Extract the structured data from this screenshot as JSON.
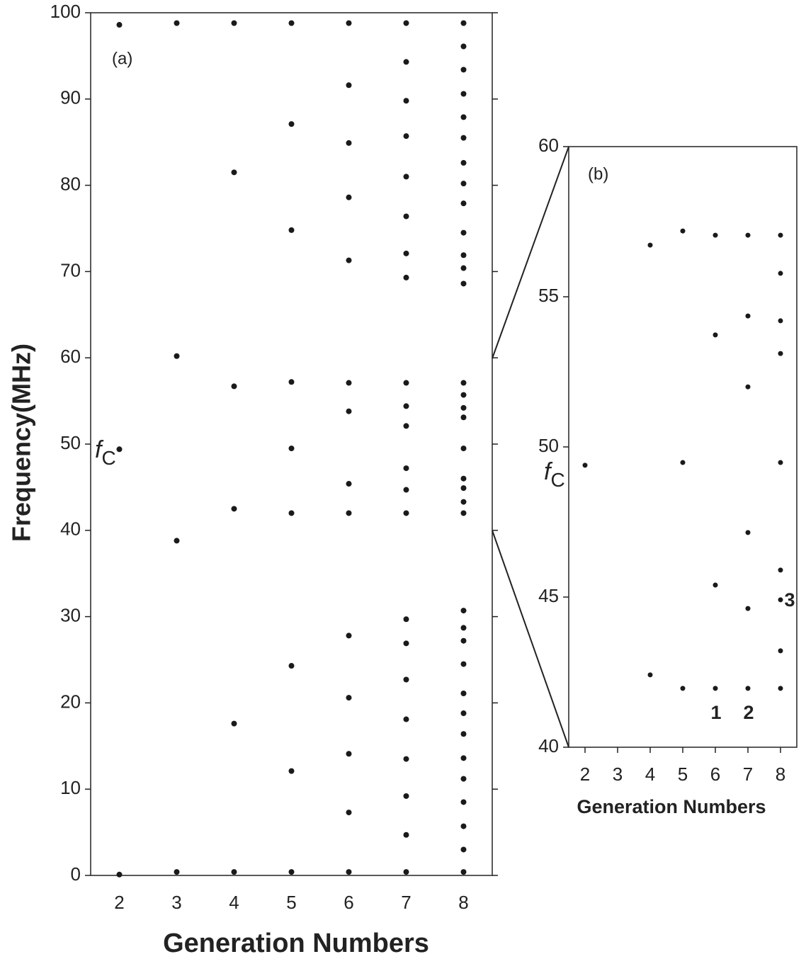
{
  "chart_data": [
    {
      "type": "scatter",
      "panel_label": "(a)",
      "x_label": "Generation Numbers",
      "y_label": "Frequency(MHz)",
      "annotation": {
        "text": "f",
        "subscript": "C"
      },
      "color": "#1a1a1a",
      "x": [
        2,
        3,
        4,
        5,
        6,
        7,
        8
      ],
      "values": [
        [
          98.6,
          49.4,
          0.1
        ],
        [
          98.8,
          60.2,
          38.8,
          0.4
        ],
        [
          98.8,
          81.5,
          56.7,
          42.5,
          17.6,
          0.4
        ],
        [
          98.8,
          87.1,
          74.8,
          57.2,
          49.5,
          42.0,
          24.3,
          12.1,
          0.4
        ],
        [
          98.8,
          91.6,
          84.9,
          78.6,
          71.3,
          57.1,
          53.8,
          45.4,
          42.0,
          27.8,
          20.6,
          14.1,
          7.3,
          0.4
        ],
        [
          98.8,
          94.3,
          89.8,
          85.7,
          81.0,
          76.4,
          72.1,
          69.3,
          57.1,
          54.4,
          52.1,
          47.2,
          44.7,
          42.0,
          29.7,
          26.9,
          22.7,
          18.1,
          13.5,
          9.2,
          4.7,
          0.4
        ],
        [
          98.8,
          96.1,
          93.4,
          90.6,
          87.9,
          85.5,
          82.6,
          80.2,
          77.9,
          74.5,
          71.9,
          70.4,
          68.6,
          57.1,
          55.7,
          54.2,
          53.1,
          49.5,
          46.0,
          44.9,
          43.3,
          42.0,
          30.7,
          28.7,
          27.2,
          24.5,
          21.1,
          18.8,
          16.4,
          13.6,
          11.2,
          8.5,
          5.7,
          3.0,
          0.4
        ]
      ],
      "xlim": [
        1.5,
        8.5
      ],
      "ylim": [
        0,
        100
      ],
      "xticks": [
        2,
        3,
        4,
        5,
        6,
        7,
        8
      ],
      "yticks": [
        0,
        10,
        20,
        30,
        40,
        50,
        60,
        70,
        80,
        90,
        100
      ]
    },
    {
      "type": "scatter",
      "panel_label": "(b)",
      "x_label": "Generation Numbers",
      "annotation": {
        "text": "f",
        "subscript": "C"
      },
      "point_labels": [
        "1",
        "2",
        "3"
      ],
      "color": "#1a1a1a",
      "x": [
        2,
        3,
        4,
        5,
        6,
        7,
        8
      ],
      "values": [
        [
          49.39
        ],
        [],
        [
          56.72,
          42.41
        ],
        [
          57.19,
          49.48,
          41.96
        ],
        [
          57.05,
          53.73,
          45.4,
          41.96
        ],
        [
          57.05,
          54.36,
          52.0,
          47.15,
          44.62,
          41.96
        ],
        [
          57.05,
          55.78,
          54.2,
          53.11,
          49.48,
          45.9,
          44.91,
          43.21,
          41.96
        ]
      ],
      "xlim": [
        1.5,
        8.5
      ],
      "ylim": [
        40,
        60
      ],
      "xticks": [
        2,
        3,
        4,
        5,
        6,
        7,
        8
      ],
      "yticks": [
        40,
        45,
        50,
        55,
        60
      ]
    }
  ]
}
